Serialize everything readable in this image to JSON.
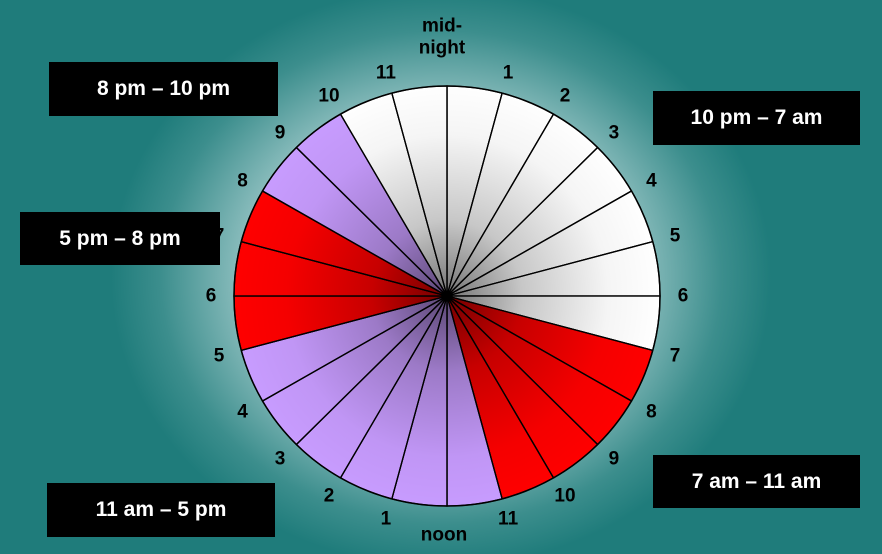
{
  "clock": {
    "hour_labels": [
      "mid-\nnight",
      "1",
      "2",
      "3",
      "4",
      "5",
      "6",
      "7",
      "8",
      "9",
      "10",
      "11",
      "noon",
      "1",
      "2",
      "3",
      "4",
      "5",
      "6",
      "7",
      "8",
      "9",
      "10",
      "11"
    ],
    "hour_colors": [
      "#ffffff",
      "#ffffff",
      "#ffffff",
      "#ffffff",
      "#ffffff",
      "#ffffff",
      "#ffffff",
      "#ff0000",
      "#ff0000",
      "#ff0000",
      "#ff0000",
      "#c89cff",
      "#c89cff",
      "#c89cff",
      "#c89cff",
      "#c89cff",
      "#c89cff",
      "#ff0000",
      "#ff0000",
      "#ff0000",
      "#c89cff",
      "#c89cff",
      "#ffffff",
      "#ffffff"
    ]
  },
  "ranges": [
    {
      "id": "night",
      "label": "10 pm – 7 am"
    },
    {
      "id": "morning",
      "label": "7 am – 11 am"
    },
    {
      "id": "midday",
      "label": "11 am – 5 pm"
    },
    {
      "id": "evening",
      "label": "5 pm – 8 pm"
    },
    {
      "id": "late-evening",
      "label": "8 pm – 10 pm"
    }
  ]
}
